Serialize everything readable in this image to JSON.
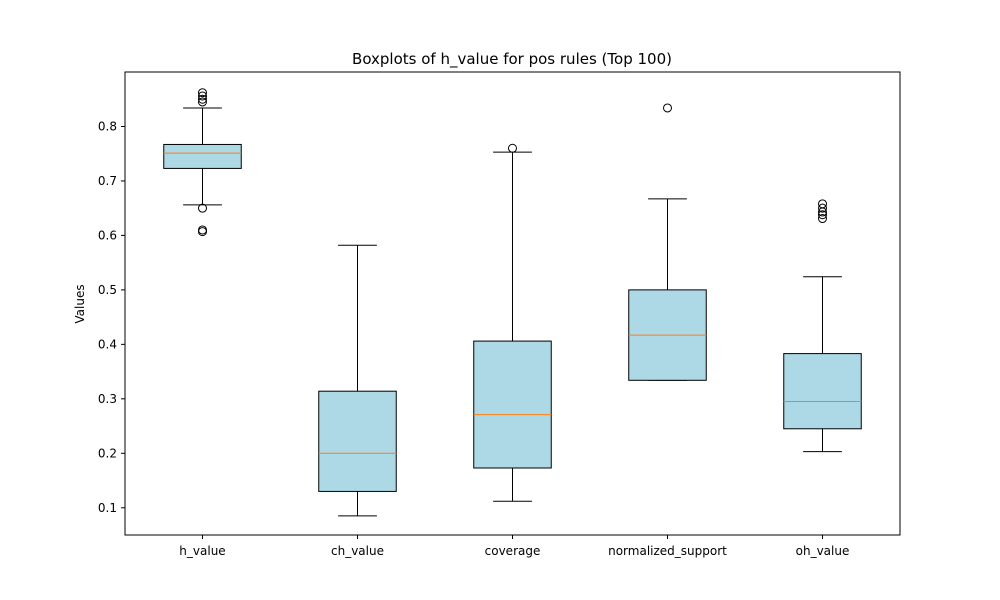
{
  "chart_data": {
    "type": "boxplot",
    "title": "Boxplots of h_value for pos rules (Top 100)",
    "xlabel": "",
    "ylabel": "Values",
    "ylim": [
      0.05,
      0.9
    ],
    "yticks": [
      0.1,
      0.2,
      0.3,
      0.4,
      0.5,
      0.6,
      0.7,
      0.8
    ],
    "grid": false,
    "colors": {
      "box_fill": "#add8e6",
      "box_edge": "#000000",
      "median": "#ff7f0e"
    },
    "series": [
      {
        "name": "h_value",
        "whisker_low": 0.656,
        "q1": 0.723,
        "median": 0.751,
        "q3": 0.767,
        "whisker_high": 0.834,
        "outliers": [
          0.65,
          0.61,
          0.607,
          0.845,
          0.85,
          0.856,
          0.862
        ]
      },
      {
        "name": "ch_value",
        "whisker_low": 0.085,
        "q1": 0.13,
        "median": 0.2,
        "q3": 0.314,
        "whisker_high": 0.582,
        "outliers": []
      },
      {
        "name": "coverage",
        "whisker_low": 0.112,
        "q1": 0.173,
        "median": 0.271,
        "q3": 0.406,
        "whisker_high": 0.753,
        "outliers": [
          0.76
        ]
      },
      {
        "name": "normalized_support",
        "whisker_low": 0.334,
        "q1": 0.334,
        "median": 0.417,
        "q3": 0.5,
        "whisker_high": 0.667,
        "outliers": [
          0.834
        ]
      },
      {
        "name": "oh_value",
        "whisker_low": 0.203,
        "q1": 0.245,
        "median": 0.295,
        "q3": 0.383,
        "whisker_high": 0.524,
        "outliers": [
          0.631,
          0.638,
          0.643,
          0.65,
          0.658
        ]
      }
    ]
  }
}
